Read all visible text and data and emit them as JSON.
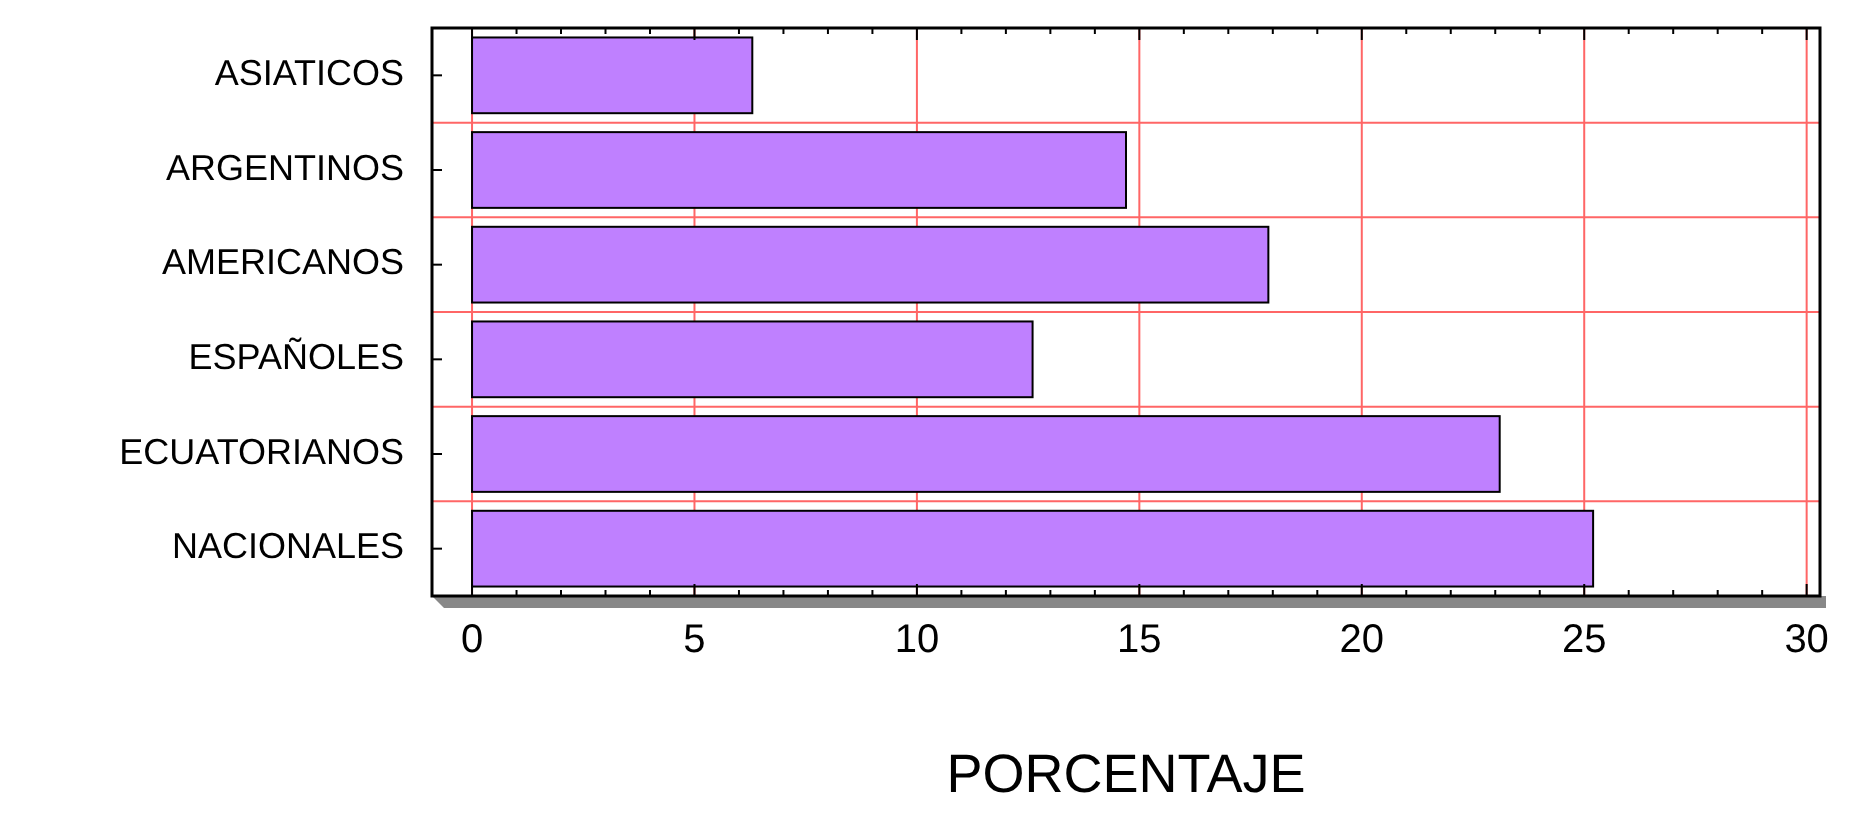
{
  "chart_data": {
    "type": "bar",
    "orientation": "horizontal",
    "xlabel": "PORCENTAJE",
    "categories": [
      "ASIATICOS",
      "ARGENTINOS",
      "AMERICANOS",
      "ESPAÑOLES",
      "ECUATORIANOS",
      "NACIONALES"
    ],
    "values": [
      6.3,
      14.7,
      17.9,
      12.6,
      23.1,
      25.2
    ],
    "color": "#bf80ff",
    "xlim": [
      -0.9,
      30.3
    ],
    "xticks": [
      0,
      5,
      10,
      15,
      20,
      25,
      30
    ],
    "grid": true
  }
}
